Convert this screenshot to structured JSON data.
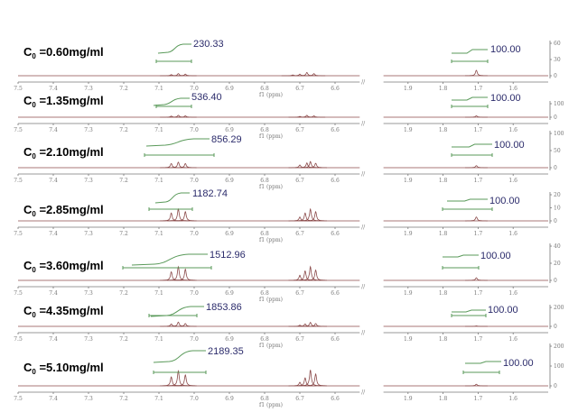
{
  "chart_data": {
    "type": "line",
    "title": "",
    "xlabel": "f1 (ppm)",
    "x_segments": [
      [
        7.5,
        6.5
      ],
      [
        2.0,
        1.5
      ]
    ],
    "x_ticks_left": [
      "7.5",
      "7.4",
      "7.3",
      "7.2",
      "7.1",
      "7.0",
      "6.9",
      "6.8",
      "6.7",
      "6.6"
    ],
    "x_ticks_right": [
      "1.9",
      "1.8",
      "1.7",
      "1.6"
    ],
    "axis_break": "//",
    "colors": {
      "spectrum": "#8b4a4a",
      "integral": "#5a9a5a",
      "integral_label": "#2b2b6b"
    },
    "panels": [
      {
        "c_symbol": "C",
        "c_sub": "0",
        "c_value": " =0.60mg/ml",
        "integral_aromatic": "230.33",
        "integral_ref": "100.00",
        "y_ticks": [
          "0",
          "30",
          "60"
        ],
        "y_max": 60,
        "peaks": [
          {
            "ppm": 7.065,
            "h": 2
          },
          {
            "ppm": 7.045,
            "h": 4
          },
          {
            "ppm": 7.025,
            "h": 3
          },
          {
            "ppm": 6.72,
            "h": 1.5
          },
          {
            "ppm": 6.7,
            "h": 3
          },
          {
            "ppm": 6.68,
            "h": 6
          },
          {
            "ppm": 6.66,
            "h": 4
          },
          {
            "ppm": 1.705,
            "h": 10
          }
        ]
      },
      {
        "c_symbol": "C",
        "c_sub": "0",
        "c_value": " =1.35mg/ml",
        "integral_aromatic": "536.40",
        "integral_ref": "100.00",
        "y_ticks": [
          "0",
          "100"
        ],
        "y_max": 100,
        "peaks": [
          {
            "ppm": 7.065,
            "h": 8
          },
          {
            "ppm": 7.045,
            "h": 14
          },
          {
            "ppm": 7.025,
            "h": 10
          },
          {
            "ppm": 6.7,
            "h": 6
          },
          {
            "ppm": 6.68,
            "h": 14
          },
          {
            "ppm": 6.66,
            "h": 10
          },
          {
            "ppm": 1.705,
            "h": 10
          }
        ]
      },
      {
        "c_symbol": "C",
        "c_sub": "0",
        "c_value": " =2.10mg/ml",
        "integral_aromatic": "856.29",
        "integral_ref": "100.00",
        "y_ticks": [
          "0",
          "50",
          "100"
        ],
        "y_max": 100,
        "peaks": [
          {
            "ppm": 7.065,
            "h": 12
          },
          {
            "ppm": 7.045,
            "h": 16
          },
          {
            "ppm": 7.025,
            "h": 12
          },
          {
            "ppm": 6.7,
            "h": 8
          },
          {
            "ppm": 6.68,
            "h": 14
          },
          {
            "ppm": 6.67,
            "h": 18
          },
          {
            "ppm": 6.655,
            "h": 13
          },
          {
            "ppm": 1.705,
            "h": 6
          }
        ]
      },
      {
        "c_symbol": "C",
        "c_sub": "0",
        "c_value": " =2.85mg/ml",
        "integral_aromatic": "1182.74",
        "integral_ref": "100.00",
        "y_ticks": [
          "0",
          "10",
          "20"
        ],
        "y_max": 20,
        "peaks": [
          {
            "ppm": 7.065,
            "h": 6
          },
          {
            "ppm": 7.045,
            "h": 9
          },
          {
            "ppm": 7.025,
            "h": 7
          },
          {
            "ppm": 6.7,
            "h": 3
          },
          {
            "ppm": 6.685,
            "h": 6
          },
          {
            "ppm": 6.67,
            "h": 9
          },
          {
            "ppm": 6.655,
            "h": 7
          },
          {
            "ppm": 1.705,
            "h": 3
          }
        ]
      },
      {
        "c_symbol": "C",
        "c_sub": "0",
        "c_value": " =3.60mg/ml",
        "integral_aromatic": "1512.96",
        "integral_ref": "100.00",
        "y_ticks": [
          "0",
          "20",
          "40"
        ],
        "y_max": 40,
        "peaks": [
          {
            "ppm": 7.065,
            "h": 10
          },
          {
            "ppm": 7.045,
            "h": 16
          },
          {
            "ppm": 7.025,
            "h": 13
          },
          {
            "ppm": 6.7,
            "h": 6
          },
          {
            "ppm": 6.685,
            "h": 11
          },
          {
            "ppm": 6.67,
            "h": 16
          },
          {
            "ppm": 6.655,
            "h": 12
          },
          {
            "ppm": 1.705,
            "h": 3
          }
        ]
      },
      {
        "c_symbol": "C",
        "c_sub": "0",
        "c_value": " =4.35mg/ml",
        "integral_aromatic": "1853.86",
        "integral_ref": "100.00",
        "y_ticks": [
          "0",
          "200"
        ],
        "y_max": 200,
        "peaks": [
          {
            "ppm": 7.065,
            "h": 25
          },
          {
            "ppm": 7.045,
            "h": 45
          },
          {
            "ppm": 7.025,
            "h": 30
          },
          {
            "ppm": 6.7,
            "h": 12
          },
          {
            "ppm": 6.685,
            "h": 25
          },
          {
            "ppm": 6.67,
            "h": 42
          },
          {
            "ppm": 6.655,
            "h": 30
          },
          {
            "ppm": 1.705,
            "h": 5
          }
        ]
      },
      {
        "c_symbol": "C",
        "c_sub": "0",
        "c_value": " =5.10mg/ml",
        "integral_aromatic": "2189.35",
        "integral_ref": "100.00",
        "y_ticks": [
          "0",
          "100",
          "200"
        ],
        "y_max": 200,
        "peaks": [
          {
            "ppm": 7.065,
            "h": 45
          },
          {
            "ppm": 7.045,
            "h": 75
          },
          {
            "ppm": 7.025,
            "h": 55
          },
          {
            "ppm": 6.7,
            "h": 18
          },
          {
            "ppm": 6.685,
            "h": 40
          },
          {
            "ppm": 6.67,
            "h": 80
          },
          {
            "ppm": 6.655,
            "h": 60
          },
          {
            "ppm": 1.705,
            "h": 8
          }
        ]
      }
    ]
  }
}
